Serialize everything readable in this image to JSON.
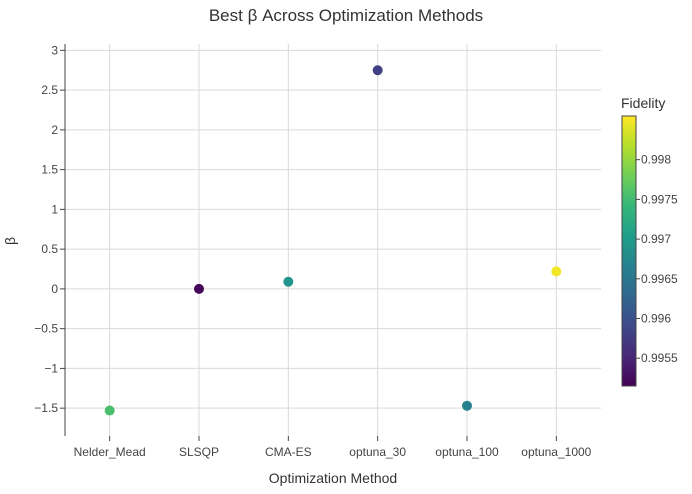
{
  "chart_data": {
    "type": "scatter",
    "title": "Best β Across Optimization Methods",
    "xlabel": "Optimization Method",
    "ylabel": "β",
    "categories": [
      "Nelder_Mead",
      "SLSQP",
      "CMA-ES",
      "optuna_30",
      "optuna_100",
      "optuna_1000"
    ],
    "series": [
      {
        "values": [
          -1.53,
          0.0,
          0.09,
          2.75,
          -1.47,
          0.22
        ],
        "color_values": [
          0.99755,
          0.9952,
          0.9969,
          0.9958,
          0.99665,
          0.9985
        ]
      }
    ],
    "ylim": [
      -1.85,
      3.08
    ],
    "yticks": [
      3,
      2.5,
      2,
      1.5,
      1,
      0.5,
      0,
      -0.5,
      -1,
      -1.5
    ],
    "ytick_labels": [
      "3",
      "2.5",
      "2",
      "1.5",
      "1",
      "0.5",
      "0",
      "−0.5",
      "−1",
      "−1.5"
    ],
    "grid": true,
    "colorbar": {
      "title": "Fidelity",
      "range": [
        0.99515,
        0.99855
      ],
      "ticks": [
        0.998,
        0.9975,
        0.997,
        0.9965,
        0.996,
        0.9955
      ],
      "tick_labels": [
        "0.998",
        "0.9975",
        "0.997",
        "0.9965",
        "0.996",
        "0.9955"
      ],
      "colorscale": [
        "#440154",
        "#482878",
        "#3e4989",
        "#31688e",
        "#26828e",
        "#1f9e89",
        "#35b779",
        "#6ece58",
        "#b5de2b",
        "#fde725"
      ]
    }
  }
}
